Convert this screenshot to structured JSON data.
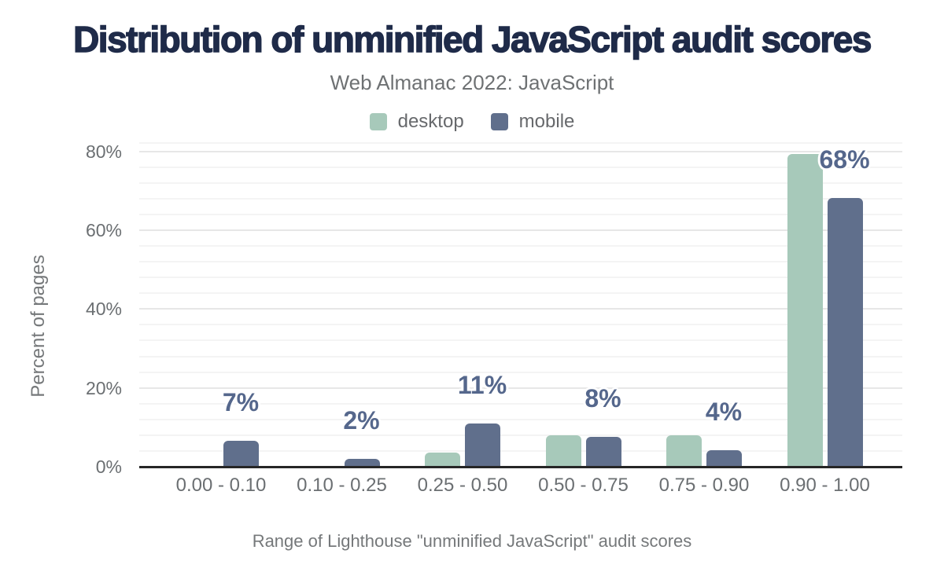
{
  "header": {
    "title": "Distribution of unminified JavaScript audit scores",
    "subtitle": "Web Almanac 2022: JavaScript"
  },
  "legend": [
    {
      "label": "desktop",
      "color": "#a7c9ba"
    },
    {
      "label": "mobile",
      "color": "#606f8c"
    }
  ],
  "chart_data": {
    "type": "bar",
    "title": "Distribution of unminified JavaScript audit scores",
    "subtitle": "Web Almanac 2022: JavaScript",
    "categories": [
      "0.00 - 0.10",
      "0.10 - 0.25",
      "0.25 - 0.50",
      "0.50 - 0.75",
      "0.75 - 0.90",
      "0.90 - 1.00"
    ],
    "series": [
      {
        "name": "desktop",
        "color": "#a7c9ba",
        "values": [
          0.3,
          0.2,
          3.6,
          8.0,
          8.0,
          79.3
        ]
      },
      {
        "name": "mobile",
        "color": "#606f8c",
        "values": [
          6.5,
          2.0,
          11.0,
          7.6,
          4.2,
          68.2
        ]
      }
    ],
    "annotations": [
      "7%",
      "2%",
      "11%",
      "8%",
      "4%",
      "68%"
    ],
    "annotation_series": "mobile",
    "xlabel": "Range of Lighthouse \"unminified JavaScript\" audit scores",
    "ylabel": "Percent of pages",
    "ylim": [
      0,
      82.3
    ],
    "y_ticks": [
      {
        "value": 0,
        "label": "0%"
      },
      {
        "value": 20,
        "label": "20%"
      },
      {
        "value": 40,
        "label": "40%"
      },
      {
        "value": 60,
        "label": "60%"
      },
      {
        "value": 80,
        "label": "80%"
      }
    ],
    "y_minor_step": 4,
    "y_major_step": 20,
    "grid": true,
    "legend_position": "top"
  },
  "colors": {
    "title_text": "#1f2b49",
    "subtitle_text": "#6e7173",
    "axis_text": "#6b6f72",
    "data_label_text": "#55678c",
    "axis_line": "#262626",
    "grid_minor": "#f4f4f4",
    "grid_major": "#e7e7e7",
    "background": "#ffffff"
  }
}
